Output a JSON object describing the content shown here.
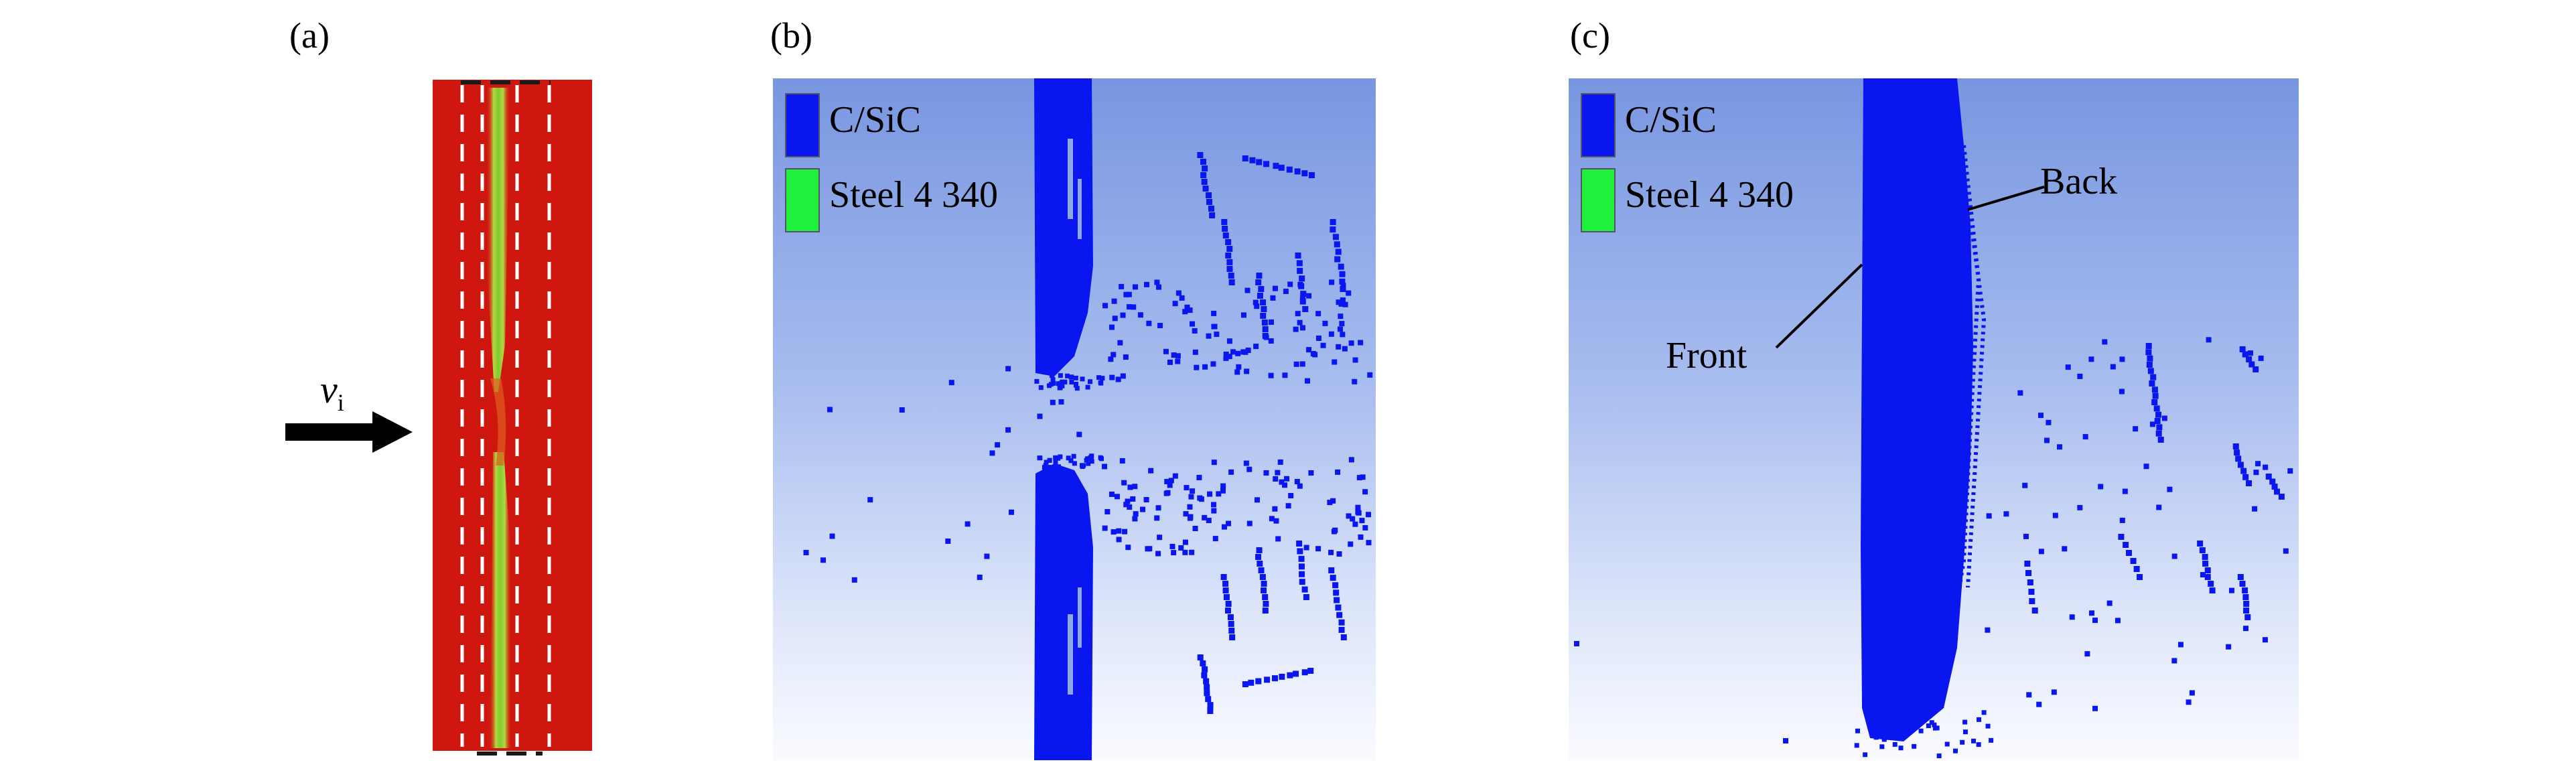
{
  "panels": {
    "a": {
      "label": "(a)",
      "velocity_symbol": "v",
      "velocity_subscript": "i"
    },
    "b": {
      "label": "(b)"
    },
    "c": {
      "label": "(c)",
      "front_label": "Front",
      "back_label": "Back"
    }
  },
  "legend": {
    "items": [
      {
        "label": "C/SiC",
        "color": "#0a16f0"
      },
      {
        "label": "Steel 4 340",
        "color": "#1ef03c"
      }
    ]
  },
  "colors": {
    "background_red": "#cf1710",
    "fracture_green": "#86d236",
    "particle_blue": "#0a16f0"
  }
}
